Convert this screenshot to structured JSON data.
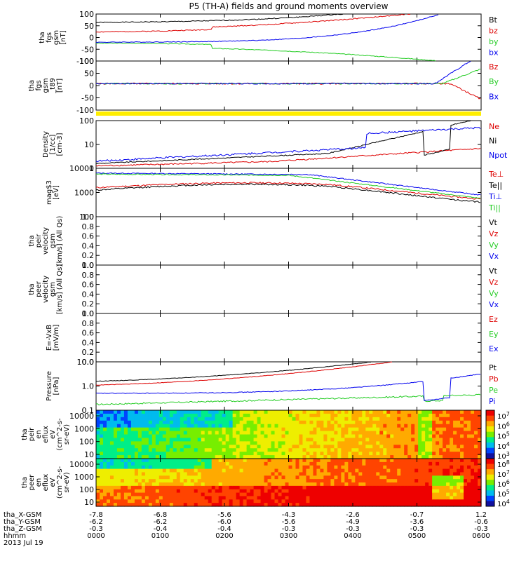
{
  "title": "P5 (TH-A) fields and ground moments overview",
  "colors": {
    "black": "#000000",
    "red": "#dd0000",
    "green": "#22cc22",
    "blue": "#0000ee",
    "yellow": "#ffee00"
  },
  "chart_data": [
    {
      "type": "line",
      "id": "p1",
      "ylabel": [
        "tha",
        "fgs",
        "gsm",
        "[nT]"
      ],
      "yticks": [
        "100",
        "50",
        "0",
        "-50",
        "-100"
      ],
      "ylim": [
        -100,
        100
      ],
      "legend": [
        {
          "name": "Bt",
          "color": "black"
        },
        {
          "name": "bz",
          "color": "red"
        },
        {
          "name": "by",
          "color": "green"
        },
        {
          "name": "bx",
          "color": "blue"
        }
      ]
    },
    {
      "type": "line",
      "id": "p2",
      "ylabel": [
        "tha",
        "fgs",
        "gsm",
        "_t89",
        "[nT]"
      ],
      "yticks": [
        "100",
        "50",
        "0",
        "-50",
        "-100"
      ],
      "ylim": [
        -120,
        100
      ],
      "legend": [
        {
          "name": "Bz",
          "color": "red"
        },
        {
          "name": "By",
          "color": "green"
        },
        {
          "name": "Bx",
          "color": "blue"
        }
      ]
    },
    {
      "type": "bar",
      "id": "pflag",
      "note": "yellow flag bar"
    },
    {
      "type": "line",
      "id": "p3",
      "scale": "log",
      "ylabel": [
        "Density",
        "[1/cc]",
        "[cm-3]"
      ],
      "yticks": [
        "100",
        "10",
        "1"
      ],
      "legend": [
        {
          "name": "Ne",
          "color": "red"
        },
        {
          "name": "Ni",
          "color": "black"
        },
        {
          "name": "Npot",
          "color": "blue"
        }
      ]
    },
    {
      "type": "line",
      "id": "p4",
      "scale": "log",
      "ylabel": [
        "mag$3",
        "[eV]"
      ],
      "yticks": [
        "10000",
        "1000",
        "100"
      ],
      "legend": [
        {
          "name": "Te⊥",
          "color": "red"
        },
        {
          "name": "Te||",
          "color": "black"
        },
        {
          "name": "Ti⊥",
          "color": "blue"
        },
        {
          "name": "Ti||",
          "color": "green"
        }
      ]
    },
    {
      "type": "line",
      "id": "p5",
      "ylabel": [
        "tha",
        "peir",
        "velocity",
        "gsm",
        "[km/s] (All Qs)"
      ],
      "yticks": [
        "1.0",
        "0.8",
        "0.6",
        "0.4",
        "0.2",
        "0.0"
      ],
      "legend": [
        {
          "name": "Vt",
          "color": "black"
        },
        {
          "name": "Vz",
          "color": "red"
        },
        {
          "name": "Vy",
          "color": "green"
        },
        {
          "name": "Vx",
          "color": "blue"
        }
      ]
    },
    {
      "type": "line",
      "id": "p6",
      "ylabel": [
        "tha",
        "peer",
        "velocity",
        "gsm",
        "[km/s] (All Qs)"
      ],
      "yticks": [
        "1.0",
        "0.8",
        "0.6",
        "0.4",
        "0.2",
        "0.0"
      ],
      "legend": [
        {
          "name": "Vt",
          "color": "black"
        },
        {
          "name": "Vz",
          "color": "red"
        },
        {
          "name": "Vy",
          "color": "green"
        },
        {
          "name": "Vx",
          "color": "blue"
        }
      ]
    },
    {
      "type": "line",
      "id": "p7",
      "ylabel": [
        "E=-VxB",
        "[mV/m]"
      ],
      "yticks": [
        "1.0",
        "0.8",
        "0.6",
        "0.4",
        "0.2",
        "0.0"
      ],
      "legend": [
        {
          "name": "Ez",
          "color": "red"
        },
        {
          "name": "Ey",
          "color": "green"
        },
        {
          "name": "Ex",
          "color": "blue"
        }
      ]
    },
    {
      "type": "line",
      "id": "p8",
      "scale": "log",
      "ylabel": [
        "Pressure",
        "[nPa]"
      ],
      "yticks": [
        "10.0",
        "1.0",
        "0.1"
      ],
      "legend": [
        {
          "name": "Pt",
          "color": "black"
        },
        {
          "name": "Pb",
          "color": "red"
        },
        {
          "name": "Pe",
          "color": "green"
        },
        {
          "name": "Pi",
          "color": "blue"
        }
      ]
    },
    {
      "type": "heatmap",
      "id": "p9",
      "ylabel": [
        "tha",
        "peir",
        "en",
        "eflux",
        "eV",
        "(cm^2-s-",
        "sr-eV)"
      ],
      "yticks": [
        "10000",
        "1000",
        "100",
        "10"
      ],
      "colorbar": {
        "labels": [
          "10^7",
          "10^6",
          "10^5",
          "10^4",
          "10^3"
        ]
      }
    },
    {
      "type": "heatmap",
      "id": "p10",
      "ylabel": [
        "tha",
        "peer",
        "en",
        "eflux",
        "eV",
        "(cm^2-s-",
        "sr-eV)"
      ],
      "yticks": [
        "10000",
        "1000",
        "100",
        "10"
      ],
      "colorbar": {
        "labels": [
          "10^8",
          "10^7",
          "10^6",
          "10^5",
          "10^4"
        ]
      }
    }
  ],
  "xaxis": {
    "rows": [
      {
        "label": "tha_X-GSM",
        "values": [
          "-7.8",
          "-6.8",
          "-5.6",
          "-4.3",
          "-2.6",
          "-0.7",
          "1.2"
        ]
      },
      {
        "label": "tha_Y-GSM",
        "values": [
          "-6.2",
          "-6.2",
          "-6.0",
          "-5.6",
          "-4.9",
          "-3.6",
          "-0.6"
        ]
      },
      {
        "label": "tha_Z-GSM",
        "values": [
          "-0.3",
          "-0.4",
          "-0.4",
          "-0.3",
          "-0.3",
          "-0.3",
          "-0.3"
        ]
      },
      {
        "label": "hhmm",
        "values": [
          "0000",
          "0100",
          "0200",
          "0300",
          "0400",
          "0500",
          "0600"
        ]
      }
    ],
    "date": "2013 Jul 19"
  }
}
